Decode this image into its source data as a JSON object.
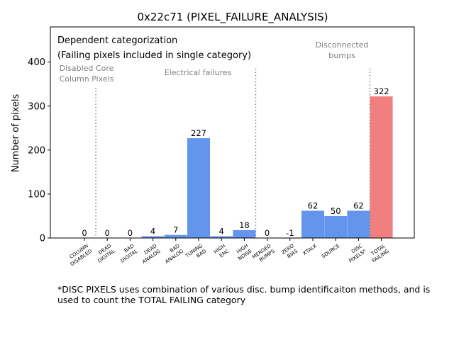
{
  "chart_data": {
    "type": "bar",
    "title": "0x22c71 (PIXEL_FAILURE_ANALYSIS)",
    "ylabel": "Number of pixels",
    "ylim": [
      0,
      480
    ],
    "yticks": [
      0,
      100,
      200,
      300,
      400
    ],
    "categories": [
      "COLUMN\nDISABLED",
      "DEAD\nDIGITAL",
      "BAD\nDIGITAL",
      "DEAD\nANALOG",
      "BAD\nANALOG",
      "TUNING\nBAD",
      "HIGH\nENC",
      "HIGH\nNOISE",
      "MERGED\nBUMPS",
      "ZERO\nBIAS",
      "XTALK",
      "SOURCE",
      "DISC\nPIXELS*",
      "TOTAL\nFAILING"
    ],
    "values": [
      0,
      0,
      0,
      4,
      7,
      227,
      4,
      18,
      0,
      -1,
      62,
      50,
      62,
      322
    ],
    "value_labels": [
      "0",
      "0",
      "0",
      "4",
      "7",
      "227",
      "4",
      "18",
      "0",
      "-1",
      "62",
      "50",
      "62",
      "322"
    ],
    "bar_colors": [
      "#6495ED",
      "#6495ED",
      "#6495ED",
      "#6495ED",
      "#6495ED",
      "#6495ED",
      "#6495ED",
      "#6495ED",
      "#6495ED",
      "#6495ED",
      "#6495ED",
      "#6495ED",
      "#6495ED",
      "#F08080"
    ],
    "separators_after_index": [
      0,
      7,
      12
    ],
    "annotations": {
      "header_line1": "Dependent categorization",
      "header_line2": "(Failing pixels included in single category)",
      "group_disabled_line1": "Disabled Core",
      "group_disabled_line2": "Column Pixels",
      "group_electrical": "Electrical failures",
      "group_disconnected_line1": "Disconnected",
      "group_disconnected_line2": "bumps"
    },
    "grid": false,
    "legend": "none"
  },
  "footnote": "*DISC PIXELS uses combination of various disc. bump identificaiton methods, and is used to count the TOTAL FAILING category"
}
